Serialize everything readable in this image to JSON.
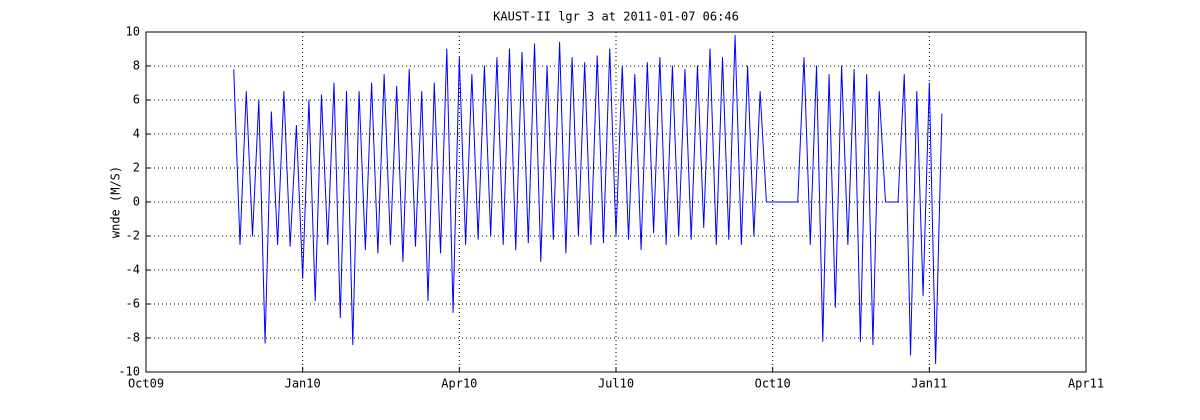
{
  "chart_data": {
    "type": "line",
    "title": "KAUST-II lgr 3 at 2011-01-07 06:46",
    "y_label": "wnde (M/S)",
    "x": [
      2009.89,
      2009.9,
      2009.91,
      2009.92,
      2009.93,
      2009.94,
      2009.95,
      2009.96,
      2009.97,
      2009.98,
      2009.99,
      2010.0,
      2010.01,
      2010.02,
      2010.03,
      2010.04,
      2010.05,
      2010.06,
      2010.07,
      2010.08,
      2010.09,
      2010.1,
      2010.11,
      2010.12,
      2010.13,
      2010.14,
      2010.15,
      2010.16,
      2010.17,
      2010.18,
      2010.19,
      2010.2,
      2010.21,
      2010.22,
      2010.23,
      2010.24,
      2010.25,
      2010.26,
      2010.27,
      2010.28,
      2010.29,
      2010.3,
      2010.31,
      2010.32,
      2010.33,
      2010.34,
      2010.35,
      2010.36,
      2010.37,
      2010.38,
      2010.39,
      2010.4,
      2010.41,
      2010.42,
      2010.43,
      2010.44,
      2010.45,
      2010.46,
      2010.47,
      2010.48,
      2010.49,
      2010.5,
      2010.51,
      2010.52,
      2010.53,
      2010.54,
      2010.55,
      2010.56,
      2010.57,
      2010.58,
      2010.59,
      2010.6,
      2010.61,
      2010.62,
      2010.63,
      2010.64,
      2010.65,
      2010.66,
      2010.67,
      2010.68,
      2010.69,
      2010.7,
      2010.71,
      2010.72,
      2010.73,
      2010.74,
      2010.79,
      2010.8,
      2010.81,
      2010.82,
      2010.83,
      2010.84,
      2010.85,
      2010.86,
      2010.87,
      2010.88,
      2010.89,
      2010.9,
      2010.91,
      2010.92,
      2010.93,
      2010.95,
      2010.96,
      2010.97,
      2010.98,
      2010.99,
      2011.0,
      2011.01,
      2011.02
    ],
    "series": [
      {
        "color": "#0000ff",
        "values": [
          7.8,
          -2.5,
          6.5,
          -2,
          6,
          -8.3,
          5.3,
          -2.5,
          6.5,
          -2.6,
          4.5,
          -4.5,
          6,
          -5.8,
          6.3,
          -2.5,
          7,
          -6.8,
          6.5,
          -8.4,
          6.5,
          -2.8,
          7,
          -3,
          7.5,
          -2.5,
          6.8,
          -3.5,
          7.8,
          -2.6,
          6.5,
          -5.8,
          7,
          -3,
          9,
          -6.5,
          8.5,
          -2.5,
          7.5,
          -2.2,
          8,
          -2,
          8.5,
          -2.5,
          9,
          -2.8,
          8.8,
          -2.4,
          9.3,
          -3.5,
          8,
          -2.2,
          9.4,
          -3,
          8.5,
          -2,
          8.2,
          -2.5,
          8.6,
          -2.4,
          9,
          -2,
          8,
          -2.2,
          7.5,
          -2.8,
          8.2,
          -1.8,
          8.5,
          -2.5,
          8,
          -2,
          7.8,
          -2.2,
          8,
          -1.5,
          9,
          -2.5,
          8.5,
          -2.2,
          9.8,
          -2.5,
          8,
          -2,
          6.5,
          0,
          0,
          8.5,
          -2.5,
          8,
          -8.2,
          7.5,
          -6.2,
          8,
          -2.5,
          7.8,
          -8.2,
          7.5,
          -8.4,
          6.5,
          0,
          0,
          7.5,
          -9,
          6.5,
          -5.5,
          7,
          -9.5,
          5.2
        ]
      }
    ],
    "xlim": [
      2009.75,
      2011.25
    ],
    "xticks": [
      {
        "value": 2009.75,
        "label": "Oct09"
      },
      {
        "value": 2010.0,
        "label": "Jan10"
      },
      {
        "value": 2010.25,
        "label": "Apr10"
      },
      {
        "value": 2010.5,
        "label": "Jul10"
      },
      {
        "value": 2010.75,
        "label": "Oct10"
      },
      {
        "value": 2011.0,
        "label": "Jan11"
      },
      {
        "value": 2011.25,
        "label": "Apr11"
      }
    ],
    "ylim": [
      -10,
      10
    ],
    "yticks": [
      -10,
      -8,
      -6,
      -4,
      -2,
      0,
      2,
      4,
      6,
      8,
      10
    ],
    "grid": true
  }
}
